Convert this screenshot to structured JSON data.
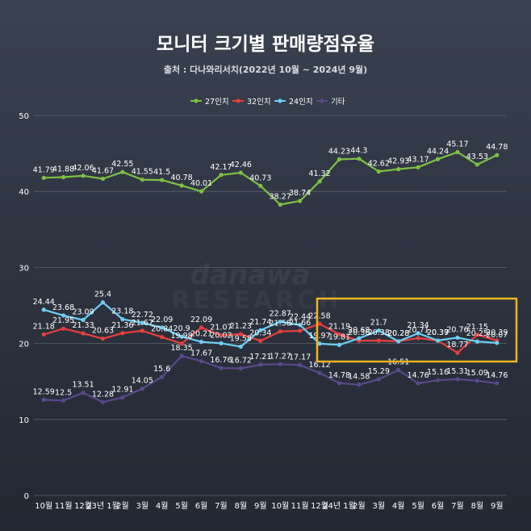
{
  "colors": {
    "series": [
      "#7cc242",
      "#e8403e",
      "#6cd0f5",
      "#5a4a8a"
    ],
    "highlight": "#f0b323"
  },
  "watermark": {
    "line1": "danawa",
    "line2": "RESEARCH"
  },
  "chart_data": {
    "type": "line",
    "title": "모니터 크기별 판매량점유율",
    "subtitle": "출처 : 다나와리서치(2022년 10월 ~ 2024년 9월)",
    "xlabel": "",
    "ylabel": "",
    "ylim": [
      0,
      50
    ],
    "yticks": [
      "0",
      "10",
      "20",
      "30",
      "40",
      "50"
    ],
    "grid": true,
    "legend_position": "top-center",
    "categories": [
      "10월",
      "11월",
      "12월",
      "23년 1월",
      "2월",
      "3월",
      "4월",
      "5월",
      "6월",
      "7월",
      "8월",
      "9월",
      "10월",
      "11월",
      "12월",
      "24년 1월",
      "2월",
      "3월",
      "4월",
      "5월",
      "6월",
      "7월",
      "8월",
      "9월"
    ],
    "series": [
      {
        "name": "27인치",
        "values": [
          41.79,
          41.88,
          42.06,
          41.67,
          42.55,
          41.55,
          41.5,
          40.78,
          40.01,
          42.17,
          42.46,
          40.73,
          38.27,
          38.74,
          41.32,
          44.23,
          44.3,
          42.62,
          42.93,
          43.17,
          44.24,
          45.17,
          43.53,
          44.78
        ],
        "labels": [
          "41.79",
          "41.88",
          "42.06",
          "41.67",
          "42.55",
          "41.55",
          "41.5",
          "40.78",
          "40.01",
          "42.17",
          "42.46",
          "40.73",
          "38.27",
          "38.74",
          "41.32",
          "44.23",
          "44.3",
          "42.62",
          "42.93",
          "43.17",
          "44.24",
          "45.17",
          "43.53",
          "44.78"
        ]
      },
      {
        "name": "32인치",
        "values": [
          21.18,
          21.95,
          21.33,
          20.63,
          21.36,
          21.67,
          20.84,
          19.98,
          22.09,
          21.07,
          21.23,
          20.34,
          21.58,
          21.66,
          22.58,
          21.19,
          20.36,
          20.38,
          20.28,
          20.71,
          20.37,
          18.77,
          21.15,
          20.39
        ],
        "labels": [
          "21.18",
          "21.95",
          "21.33",
          "20.63",
          "21.36",
          "21.67",
          "20.84",
          "19.98",
          "22.09",
          "21.07",
          "21.23",
          "20.34",
          "21.58",
          "21.66",
          "22.58",
          "21.19",
          "20.36",
          "20.38",
          "20.28",
          "20.71",
          "20.37",
          "18.77",
          "21.15",
          "20.39"
        ]
      },
      {
        "name": "24인치",
        "values": [
          24.44,
          23.68,
          23.09,
          25.4,
          23.18,
          22.72,
          22.09,
          20.9,
          20.21,
          20.02,
          19.58,
          21.74,
          22.87,
          22.44,
          19.97,
          19.81,
          20.68,
          21.7,
          20.28,
          21.34,
          20.39,
          20.76,
          20.25,
          20.07
        ],
        "labels": [
          "24.44",
          "23.68",
          "23.09",
          "25.4",
          "23.18",
          "22.72",
          "22.09",
          "20.9",
          "20.21",
          "20.02",
          "19.58",
          "21.74",
          "22.87",
          "22.44",
          "19.97",
          "19.81",
          "20.68",
          "21.7",
          "20.28",
          "21.34",
          "20.39",
          "20.76",
          "20.25",
          "20.07"
        ]
      },
      {
        "name": "기타",
        "values": [
          12.59,
          12.5,
          13.51,
          12.28,
          12.91,
          14.05,
          15.6,
          18.35,
          17.67,
          16.76,
          16.72,
          17.21,
          17.27,
          17.17,
          16.12,
          14.78,
          14.58,
          15.29,
          16.51,
          14.76,
          15.16,
          15.31,
          15.09,
          14.76
        ],
        "labels": [
          "12.59",
          "12.5",
          "13.51",
          "12.28",
          "12.91",
          "14.05",
          "15.6",
          "18.35",
          "17.67",
          "16.76",
          "16.72",
          "17.21",
          "17.27",
          "17.17",
          "16.12",
          "14.78",
          "14.58",
          "15.29",
          "16.51",
          "14.76",
          "15.16",
          "15.31",
          "15.09",
          "14.76"
        ]
      }
    ]
  }
}
